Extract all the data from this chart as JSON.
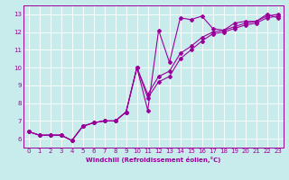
{
  "xlabel": "Windchill (Refroidissement éolien,°C)",
  "bg_color": "#c8ecec",
  "line_color": "#990099",
  "grid_color": "#ffffff",
  "xlim": [
    -0.5,
    23.5
  ],
  "ylim": [
    5.5,
    13.5
  ],
  "xticks": [
    0,
    1,
    2,
    3,
    4,
    5,
    6,
    7,
    8,
    9,
    10,
    11,
    12,
    13,
    14,
    15,
    16,
    17,
    18,
    19,
    20,
    21,
    22,
    23
  ],
  "yticks": [
    6,
    7,
    8,
    9,
    10,
    11,
    12,
    13
  ],
  "line1_x": [
    0,
    1,
    2,
    3,
    4,
    5,
    6,
    7,
    8,
    9,
    10,
    11,
    12,
    13,
    14,
    15,
    16,
    17,
    18,
    19,
    20,
    21,
    22,
    23
  ],
  "line1_y": [
    6.4,
    6.2,
    6.2,
    6.2,
    5.9,
    6.7,
    6.9,
    7.0,
    7.0,
    7.5,
    10.0,
    7.6,
    12.1,
    10.3,
    12.8,
    12.7,
    12.9,
    12.2,
    12.1,
    12.5,
    12.6,
    12.6,
    13.0,
    12.8
  ],
  "line2_x": [
    0,
    1,
    2,
    3,
    4,
    5,
    6,
    7,
    8,
    9,
    10,
    11,
    12,
    13,
    14,
    15,
    16,
    17,
    18,
    19,
    20,
    21,
    22,
    23
  ],
  "line2_y": [
    6.4,
    6.2,
    6.2,
    6.2,
    5.9,
    6.7,
    6.9,
    7.0,
    7.0,
    7.5,
    10.0,
    8.5,
    9.5,
    9.8,
    10.8,
    11.2,
    11.7,
    12.0,
    12.1,
    12.3,
    12.5,
    12.6,
    12.9,
    13.0
  ],
  "line3_x": [
    0,
    1,
    2,
    3,
    4,
    5,
    6,
    7,
    8,
    9,
    10,
    11,
    12,
    13,
    14,
    15,
    16,
    17,
    18,
    19,
    20,
    21,
    22,
    23
  ],
  "line3_y": [
    6.4,
    6.2,
    6.2,
    6.2,
    5.9,
    6.7,
    6.9,
    7.0,
    7.0,
    7.5,
    10.0,
    8.3,
    9.2,
    9.5,
    10.5,
    11.0,
    11.5,
    11.9,
    12.0,
    12.2,
    12.4,
    12.5,
    12.8,
    12.9
  ],
  "marker_size": 2,
  "line_width": 0.8,
  "tick_fontsize": 5,
  "xlabel_fontsize": 5,
  "xlabel_bold": true
}
